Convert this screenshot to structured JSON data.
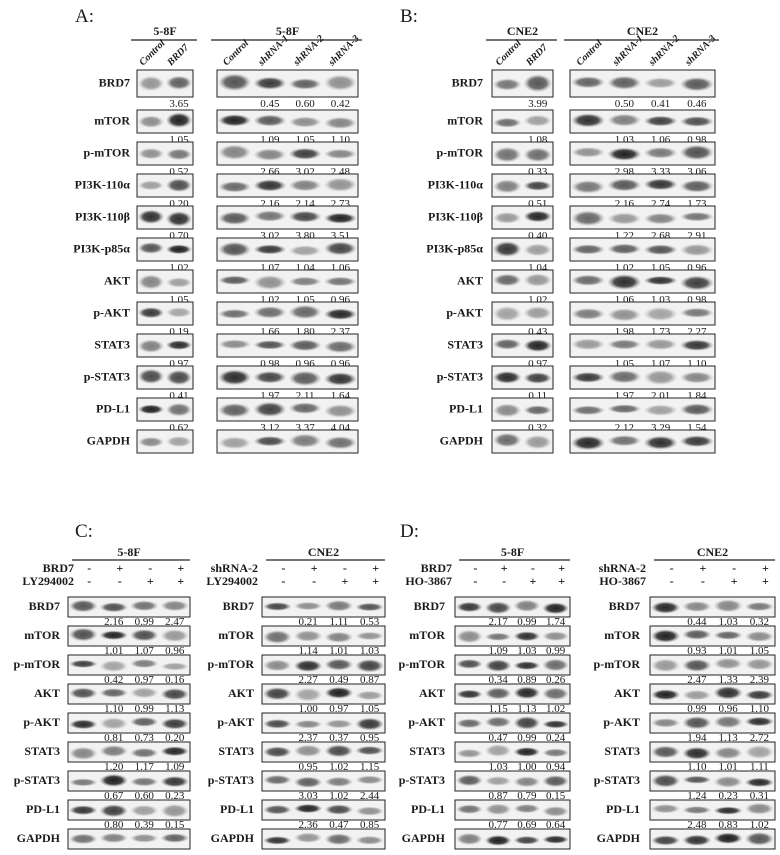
{
  "panels": [
    {
      "label": "A:",
      "groups": [
        {
          "cell_line": "5-8F",
          "lanes": [
            "Control",
            "BRD7"
          ]
        },
        {
          "cell_line": "5-8F",
          "lanes": [
            "Control",
            "shRNA-1",
            "shRNA-2",
            "shRNA-3"
          ]
        }
      ],
      "rows": [
        {
          "protein": "BRD7",
          "values": [
            [
              "3.65"
            ],
            [
              "0.45",
              "0.60",
              "0.42"
            ]
          ]
        },
        {
          "protein": "mTOR",
          "values": [
            [
              "1.05"
            ],
            [
              "1.09",
              "1.05",
              "1.10"
            ]
          ]
        },
        {
          "protein": "p-mTOR",
          "values": [
            [
              "0.52"
            ],
            [
              "2.66",
              "3.02",
              "2.48"
            ]
          ]
        },
        {
          "protein": "PI3K-110α",
          "values": [
            [
              "0.20"
            ],
            [
              "2.16",
              "2.14",
              "2.73"
            ]
          ]
        },
        {
          "protein": "PI3K-110β",
          "values": [
            [
              "0.70"
            ],
            [
              "3.02",
              "3.80",
              "3.51"
            ]
          ]
        },
        {
          "protein": "PI3K-p85α",
          "values": [
            [
              "1.02"
            ],
            [
              "1.07",
              "1.04",
              "1.06"
            ]
          ]
        },
        {
          "protein": "AKT",
          "values": [
            [
              "1.05"
            ],
            [
              "1.02",
              "1.05",
              "0.96"
            ]
          ]
        },
        {
          "protein": "p-AKT",
          "values": [
            [
              "0.19"
            ],
            [
              "1.66",
              "1.80",
              "2.37"
            ]
          ]
        },
        {
          "protein": "STAT3",
          "values": [
            [
              "0.97"
            ],
            [
              "0.98",
              "0.96",
              "0.96"
            ]
          ]
        },
        {
          "protein": "p-STAT3",
          "values": [
            [
              "0.41"
            ],
            [
              "1.97",
              "2.11",
              "1.64"
            ]
          ]
        },
        {
          "protein": "PD-L1",
          "values": [
            [
              "0.62"
            ],
            [
              "3.12",
              "3.37",
              "4.04"
            ]
          ]
        },
        {
          "protein": "GAPDH"
        }
      ]
    },
    {
      "label": "B:",
      "groups": [
        {
          "cell_line": "CNE2",
          "lanes": [
            "Control",
            "BRD7"
          ]
        },
        {
          "cell_line": "CNE2",
          "lanes": [
            "Control",
            "shRNA-1",
            "shRNA-2",
            "shRNA-3"
          ]
        }
      ],
      "rows": [
        {
          "protein": "BRD7",
          "values": [
            [
              "3.99"
            ],
            [
              "0.50",
              "0.41",
              "0.46"
            ]
          ]
        },
        {
          "protein": "mTOR",
          "values": [
            [
              "1.08"
            ],
            [
              "1.03",
              "1.06",
              "0.98"
            ]
          ]
        },
        {
          "protein": "p-mTOR",
          "values": [
            [
              "0.33"
            ],
            [
              "2.98",
              "3.33",
              "3.06"
            ]
          ]
        },
        {
          "protein": "PI3K-110α",
          "values": [
            [
              "0.51"
            ],
            [
              "2.16",
              "2.74",
              "1.73"
            ]
          ]
        },
        {
          "protein": "PI3K-110β",
          "values": [
            [
              "0.40"
            ],
            [
              "1.22",
              "2.68",
              "2.91"
            ]
          ]
        },
        {
          "protein": "PI3K-p85α",
          "values": [
            [
              "1.04"
            ],
            [
              "1.02",
              "1.05",
              "0.96"
            ]
          ]
        },
        {
          "protein": "AKT",
          "values": [
            [
              "1.02"
            ],
            [
              "1.06",
              "1.03",
              "0.98"
            ]
          ]
        },
        {
          "protein": "p-AKT",
          "values": [
            [
              "0.43"
            ],
            [
              "1.98",
              "1.73",
              "2.27"
            ]
          ]
        },
        {
          "protein": "STAT3",
          "values": [
            [
              "0.97"
            ],
            [
              "1.05",
              "1.07",
              "1.10"
            ]
          ]
        },
        {
          "protein": "p-STAT3",
          "values": [
            [
              "0.11"
            ],
            [
              "1.97",
              "2.01",
              "1.84"
            ]
          ]
        },
        {
          "protein": "PD-L1",
          "values": [
            [
              "0.32"
            ],
            [
              "2.12",
              "3.29",
              "1.54"
            ]
          ]
        },
        {
          "protein": "GAPDH"
        }
      ]
    },
    {
      "label": "C:",
      "groups": [
        {
          "cell_line": "5-8F",
          "treatments": [
            {
              "name": "BRD7",
              "signs": [
                "-",
                "+",
                "-",
                "+"
              ]
            },
            {
              "name": "LY294002",
              "signs": [
                "-",
                "-",
                "+",
                "+"
              ]
            }
          ],
          "rows": [
            {
              "protein": "BRD7",
              "values": [
                "2.16",
                "0.99",
                "2.47"
              ]
            },
            {
              "protein": "mTOR",
              "values": [
                "1.01",
                "1.07",
                "0.96"
              ]
            },
            {
              "protein": "p-mTOR",
              "values": [
                "0.42",
                "0.97",
                "0.16"
              ]
            },
            {
              "protein": "AKT",
              "values": [
                "1.10",
                "0.99",
                "1.13"
              ]
            },
            {
              "protein": "p-AKT",
              "values": [
                "0.81",
                "0.73",
                "0.20"
              ]
            },
            {
              "protein": "STAT3",
              "values": [
                "1.20",
                "1.17",
                "1.09"
              ]
            },
            {
              "protein": "p-STAT3",
              "values": [
                "0.67",
                "0.60",
                "0.23"
              ]
            },
            {
              "protein": "PD-L1",
              "values": [
                "0.80",
                "0.39",
                "0.15"
              ]
            },
            {
              "protein": "GAPDH"
            }
          ]
        },
        {
          "cell_line": "CNE2",
          "treatments": [
            {
              "name": "shRNA-2",
              "signs": [
                "-",
                "+",
                "-",
                "+"
              ]
            },
            {
              "name": "LY294002",
              "signs": [
                "-",
                "-",
                "+",
                "+"
              ]
            }
          ],
          "rows": [
            {
              "protein": "BRD7",
              "values": [
                "0.21",
                "1.11",
                "0.53"
              ]
            },
            {
              "protein": "mTOR",
              "values": [
                "1.14",
                "1.01",
                "1.03"
              ]
            },
            {
              "protein": "p-mTOR",
              "values": [
                "2.27",
                "0.49",
                "0.87"
              ]
            },
            {
              "protein": "AKT",
              "values": [
                "1.00",
                "0.97",
                "1.05"
              ]
            },
            {
              "protein": "p-AKT",
              "values": [
                "2.37",
                "0.37",
                "0.95"
              ]
            },
            {
              "protein": "STAT3",
              "values": [
                "0.95",
                "1.02",
                "1.15"
              ]
            },
            {
              "protein": "p-STAT3",
              "values": [
                "3.03",
                "1.02",
                "2.44"
              ]
            },
            {
              "protein": "PD-L1",
              "values": [
                "2.36",
                "0.47",
                "0.85"
              ]
            },
            {
              "protein": "GAPDH"
            }
          ]
        }
      ]
    },
    {
      "label": "D:",
      "groups": [
        {
          "cell_line": "5-8F",
          "treatments": [
            {
              "name": "BRD7",
              "signs": [
                "-",
                "+",
                "-",
                "+"
              ]
            },
            {
              "name": "HO-3867",
              "signs": [
                "-",
                "-",
                "+",
                "+"
              ]
            }
          ],
          "rows": [
            {
              "protein": "BRD7",
              "values": [
                "2.17",
                "0.99",
                "1.74"
              ]
            },
            {
              "protein": "mTOR",
              "values": [
                "1.09",
                "1.03",
                "0.99"
              ]
            },
            {
              "protein": "p-mTOR",
              "values": [
                "0.34",
                "0.89",
                "0.26"
              ]
            },
            {
              "protein": "AKT",
              "values": [
                "1.15",
                "1.13",
                "1.02"
              ]
            },
            {
              "protein": "p-AKT",
              "values": [
                "0.47",
                "0.99",
                "0.24"
              ]
            },
            {
              "protein": "STAT3",
              "values": [
                "1.03",
                "1.00",
                "0.94"
              ]
            },
            {
              "protein": "p-STAT3",
              "values": [
                "0.87",
                "0.79",
                "0.15"
              ]
            },
            {
              "protein": "PD-L1",
              "values": [
                "0.77",
                "0.69",
                "0.64"
              ]
            },
            {
              "protein": "GAPDH"
            }
          ]
        },
        {
          "cell_line": "CNE2",
          "treatments": [
            {
              "name": "shRNA-2",
              "signs": [
                "-",
                "+",
                "-",
                "+"
              ]
            },
            {
              "name": "HO-3867",
              "signs": [
                "-",
                "-",
                "+",
                "+"
              ]
            }
          ],
          "rows": [
            {
              "protein": "BRD7",
              "values": [
                "0.44",
                "1.03",
                "0.32"
              ]
            },
            {
              "protein": "mTOR",
              "values": [
                "0.93",
                "1.01",
                "1.05"
              ]
            },
            {
              "protein": "p-mTOR",
              "values": [
                "2.47",
                "1.33",
                "2.39"
              ]
            },
            {
              "protein": "AKT",
              "values": [
                "0.99",
                "0.96",
                "1.10"
              ]
            },
            {
              "protein": "p-AKT",
              "values": [
                "1.94",
                "1.13",
                "2.72"
              ]
            },
            {
              "protein": "STAT3",
              "values": [
                "1.10",
                "1.01",
                "1.11"
              ]
            },
            {
              "protein": "p-STAT3",
              "values": [
                "1.24",
                "0.23",
                "0.31"
              ]
            },
            {
              "protein": "PD-L1",
              "values": [
                "2.48",
                "0.83",
                "1.02"
              ]
            },
            {
              "protein": "GAPDH"
            }
          ]
        }
      ]
    }
  ]
}
